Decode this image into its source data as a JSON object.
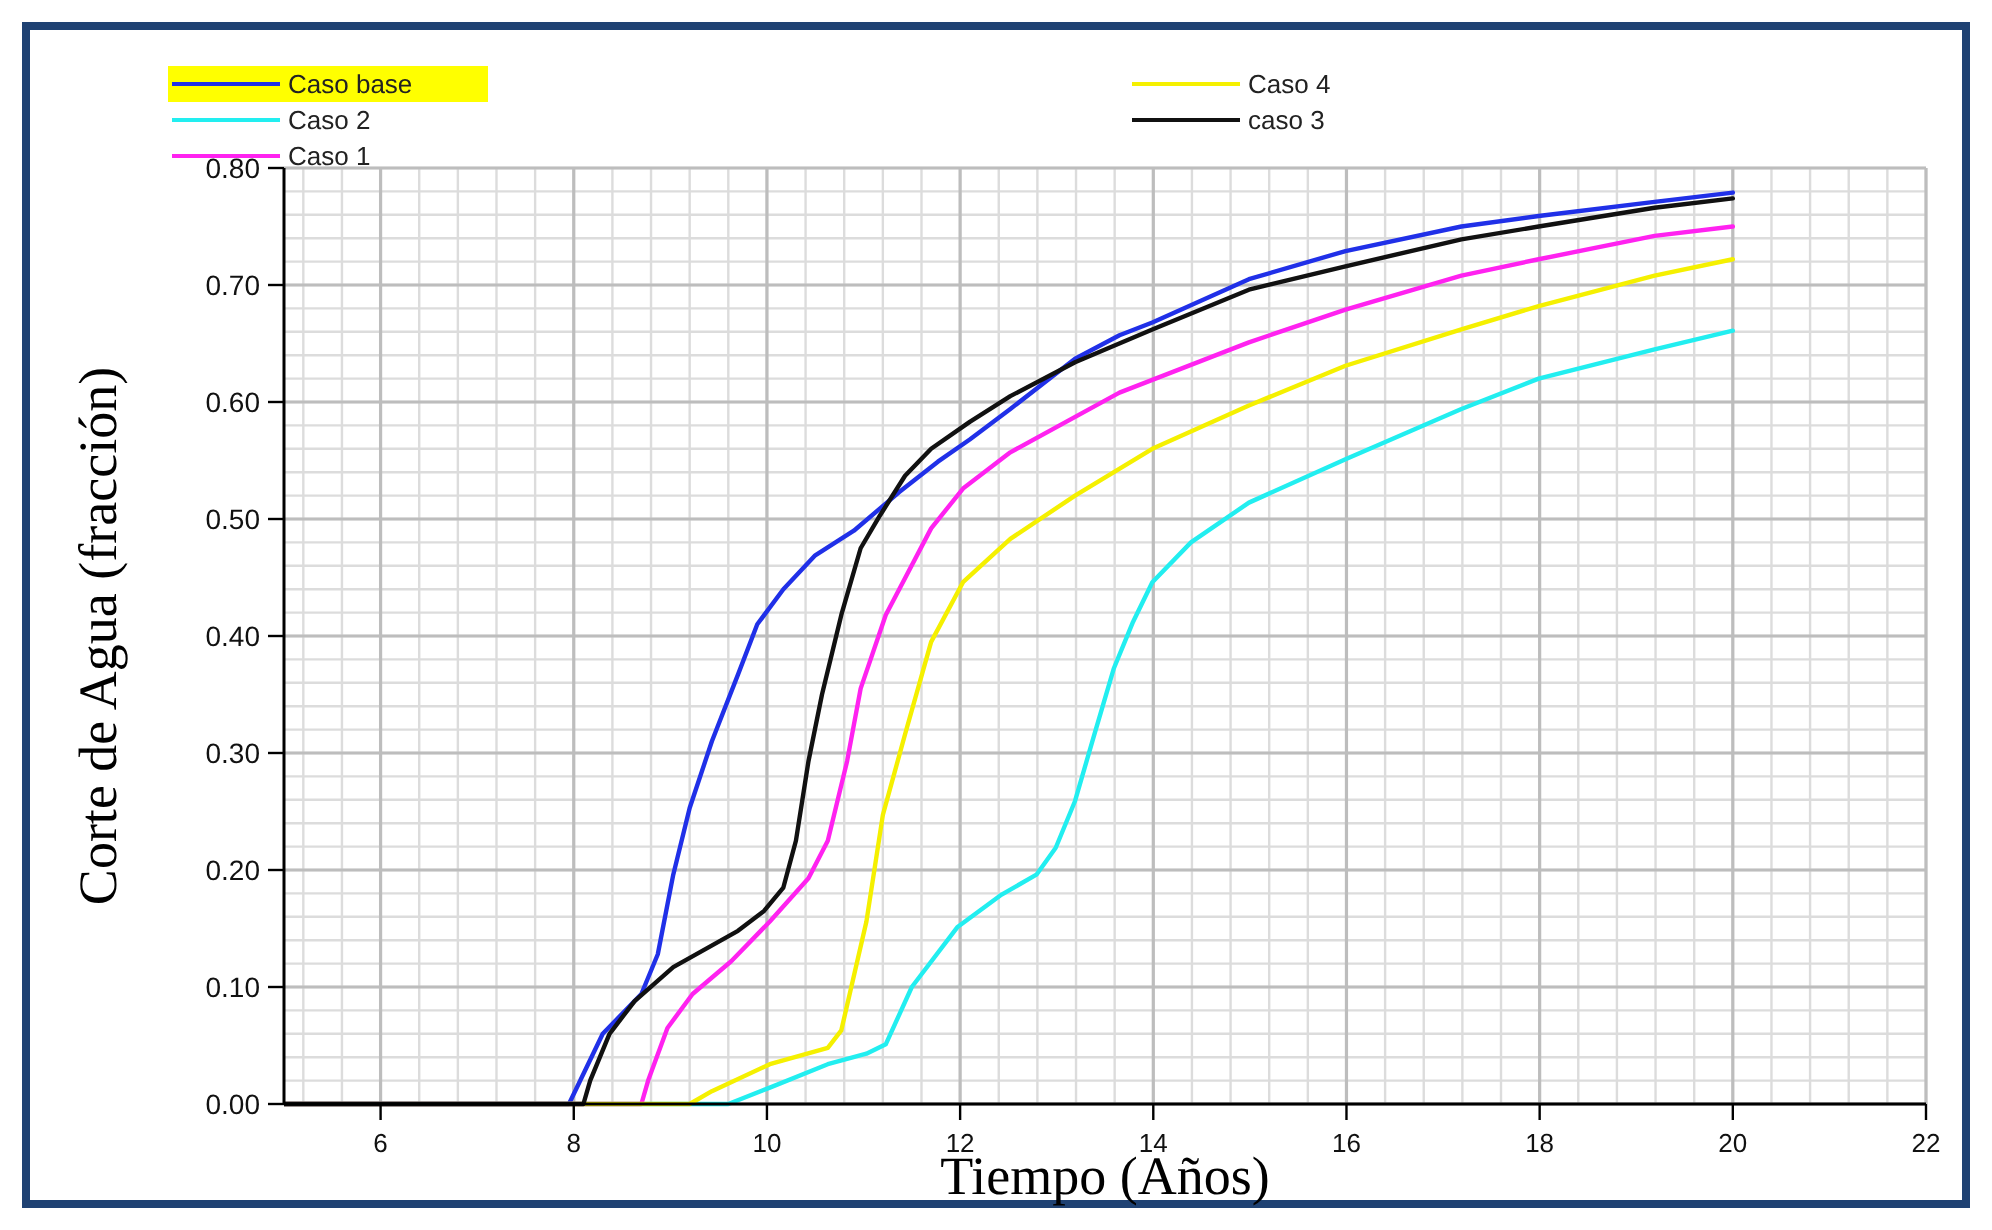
{
  "chart_data": {
    "type": "line",
    "xlabel": "Tiempo (Años)",
    "ylabel": "Corte de Agua (fracción)",
    "xlim": [
      5,
      22
    ],
    "ylim": [
      0,
      0.8
    ],
    "xticks": [
      6,
      8,
      10,
      12,
      14,
      16,
      18,
      20,
      22
    ],
    "yticks": [
      {
        "value": 0,
        "label": "0.00"
      },
      {
        "value": 0.1,
        "label": "0.10"
      },
      {
        "value": 0.2,
        "label": "0.20"
      },
      {
        "value": 0.3,
        "label": "0.30"
      },
      {
        "value": 0.4,
        "label": "0.40"
      },
      {
        "value": 0.5,
        "label": "0.50"
      },
      {
        "value": 0.6,
        "label": "0.60"
      },
      {
        "value": 0.7,
        "label": "0.70"
      },
      {
        "value": 0.8,
        "label": "0.80"
      }
    ],
    "grid": true,
    "legend": "top left",
    "marker": "none",
    "line_style": "solid",
    "series": [
      {
        "name": "Caso base",
        "color": "#2030e8",
        "x": [
          5,
          7.95,
          8.3,
          8.7,
          8.87,
          9.03,
          9.2,
          9.43,
          9.7,
          9.9,
          10.17,
          10.5,
          10.9,
          11.37,
          11.77,
          12.1,
          12.52,
          13.19,
          13.65,
          13.99,
          14.99,
          15.99,
          17.19,
          17.99,
          19.19,
          20
        ],
        "values": [
          0,
          0,
          0.06,
          0.094,
          0.128,
          0.196,
          0.253,
          0.31,
          0.367,
          0.41,
          0.44,
          0.469,
          0.49,
          0.523,
          0.549,
          0.568,
          0.594,
          0.637,
          0.657,
          0.668,
          0.705,
          0.729,
          0.75,
          0.759,
          0.771,
          0.779
        ]
      },
      {
        "name": "Caso 2",
        "color": "#22eef0",
        "x": [
          5,
          9.6,
          10.03,
          10.63,
          11.03,
          11.23,
          11.5,
          11.97,
          12.43,
          12.79,
          12.99,
          13.19,
          13.39,
          13.59,
          13.79,
          13.99,
          14.39,
          14.99,
          15.99,
          17.19,
          17.99,
          19.19,
          20
        ],
        "values": [
          0,
          0,
          0.014,
          0.034,
          0.043,
          0.051,
          0.1,
          0.151,
          0.179,
          0.196,
          0.219,
          0.259,
          0.316,
          0.372,
          0.412,
          0.446,
          0.48,
          0.514,
          0.551,
          0.594,
          0.62,
          0.645,
          0.661
        ]
      },
      {
        "name": "Caso 1",
        "color": "#ff22f0",
        "x": [
          5,
          8.7,
          8.77,
          8.97,
          9.23,
          9.63,
          10.03,
          10.43,
          10.63,
          10.83,
          10.97,
          11.23,
          11.7,
          12.03,
          12.52,
          13.65,
          14.99,
          15.99,
          17.19,
          17.99,
          19.19,
          20
        ],
        "values": [
          0,
          0,
          0.02,
          0.065,
          0.094,
          0.122,
          0.156,
          0.193,
          0.225,
          0.293,
          0.355,
          0.418,
          0.492,
          0.526,
          0.557,
          0.608,
          0.651,
          0.679,
          0.708,
          0.722,
          0.742,
          0.75
        ]
      },
      {
        "name": "Caso 4",
        "color": "#f5f000",
        "x": [
          5,
          9.2,
          9.43,
          10.03,
          10.63,
          10.77,
          11.03,
          11.2,
          11.43,
          11.7,
          12.03,
          12.52,
          13.19,
          13.99,
          14.99,
          15.99,
          17.19,
          17.99,
          19.19,
          20
        ],
        "values": [
          0,
          0,
          0.011,
          0.034,
          0.048,
          0.063,
          0.156,
          0.247,
          0.316,
          0.395,
          0.446,
          0.483,
          0.52,
          0.56,
          0.597,
          0.631,
          0.662,
          0.682,
          0.708,
          0.722
        ]
      },
      {
        "name": "caso 3",
        "color": "#111111",
        "x": [
          5,
          8.1,
          8.17,
          8.37,
          8.63,
          9.03,
          9.7,
          9.97,
          10.17,
          10.3,
          10.43,
          10.57,
          10.77,
          10.97,
          11.17,
          11.43,
          11.7,
          12.1,
          12.52,
          13.19,
          13.99,
          14.99,
          15.99,
          17.19,
          17.99,
          19.19,
          20
        ],
        "values": [
          0,
          0,
          0.02,
          0.06,
          0.088,
          0.117,
          0.148,
          0.165,
          0.185,
          0.225,
          0.293,
          0.35,
          0.418,
          0.475,
          0.503,
          0.537,
          0.56,
          0.583,
          0.605,
          0.634,
          0.662,
          0.696,
          0.716,
          0.739,
          0.75,
          0.766,
          0.774
        ]
      }
    ]
  }
}
